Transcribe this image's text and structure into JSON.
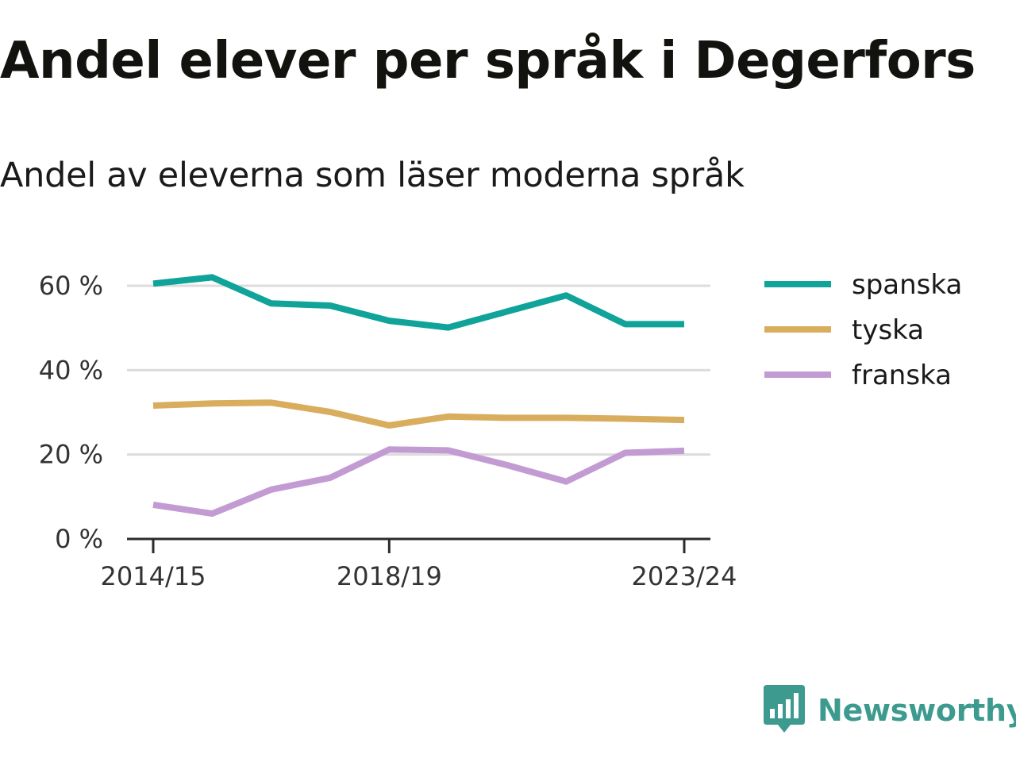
{
  "title": "Andel elever per språk i Degerfors",
  "subtitle": "Andel av eleverna som läser moderna språk",
  "brand": {
    "name": "Newsworthy",
    "icon": "newsworthy-logo-icon",
    "color": "#3c9a8f"
  },
  "chart_data": {
    "type": "line",
    "title": "Andel elever per språk i Degerfors",
    "subtitle": "Andel av eleverna som läser moderna språk",
    "xlabel": "",
    "ylabel": "",
    "x": [
      "2014/15",
      "2015/16",
      "2016/17",
      "2017/18",
      "2018/19",
      "2019/20",
      "2020/21",
      "2021/22",
      "2022/23",
      "2023/24"
    ],
    "x_tick_labels": [
      "2014/15",
      "2018/19",
      "2023/24"
    ],
    "y_ticks": [
      0,
      20,
      40,
      60
    ],
    "y_tick_labels": [
      "0 %",
      "20 %",
      "40 %",
      "60 %"
    ],
    "ylim": [
      0,
      62
    ],
    "grid": true,
    "legend_position": "right",
    "series": [
      {
        "name": "spanska",
        "color": "#0fa39a",
        "values": [
          60.5,
          62.0,
          55.8,
          55.3,
          51.7,
          50.1,
          53.9,
          57.7,
          50.9,
          50.9
        ]
      },
      {
        "name": "tyska",
        "color": "#d9ad5e",
        "values": [
          31.6,
          32.1,
          32.3,
          30.1,
          26.9,
          29.0,
          28.7,
          28.7,
          28.5,
          28.2
        ]
      },
      {
        "name": "franska",
        "color": "#c39bd3",
        "values": [
          8.1,
          6.0,
          11.7,
          14.5,
          21.2,
          21.0,
          17.5,
          13.6,
          20.4,
          20.9
        ]
      }
    ]
  }
}
